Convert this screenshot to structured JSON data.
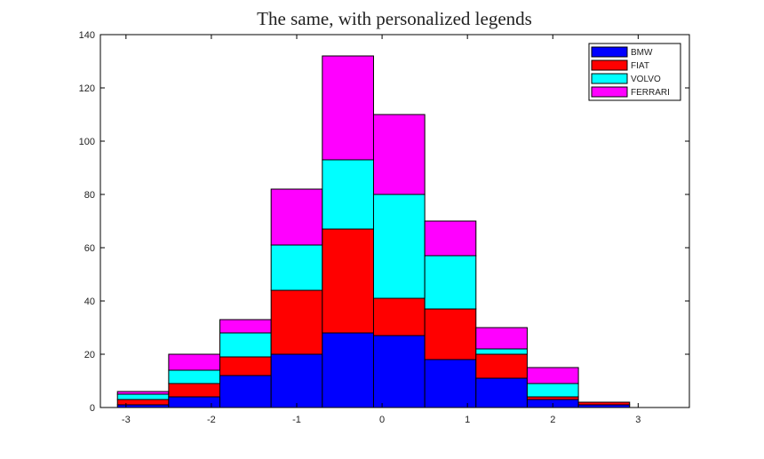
{
  "chart_data": {
    "type": "bar",
    "stacked": true,
    "title": "The same, with personalized legends",
    "xlabel": "",
    "ylabel": "",
    "x": [
      -2.8,
      -2.2,
      -1.6,
      -1.0,
      -0.4,
      0.2,
      0.8,
      1.4,
      2.0,
      2.6,
      3.2
    ],
    "xlim": [
      -3.3,
      3.6
    ],
    "ylim": [
      0,
      140
    ],
    "xticks": [
      -3,
      -2,
      -1,
      0,
      1,
      2,
      3
    ],
    "yticks": [
      0,
      20,
      40,
      60,
      80,
      100,
      120,
      140
    ],
    "bin_width": 0.6,
    "legend_position": "top-right",
    "series": [
      {
        "name": "BMW",
        "color": "#0000ff",
        "values": [
          1,
          4,
          12,
          20,
          28,
          27,
          18,
          11,
          3,
          1,
          0
        ]
      },
      {
        "name": "FIAT",
        "color": "#ff0000",
        "values": [
          2,
          5,
          7,
          24,
          39,
          14,
          19,
          9,
          1,
          1,
          0
        ]
      },
      {
        "name": "VOLVO",
        "color": "#00ffff",
        "values": [
          2,
          5,
          9,
          17,
          26,
          39,
          20,
          2,
          5,
          0,
          0
        ]
      },
      {
        "name": "FERRARI",
        "color": "#ff00ff",
        "values": [
          1,
          6,
          5,
          21,
          39,
          30,
          13,
          8,
          6,
          0,
          0
        ]
      }
    ]
  }
}
